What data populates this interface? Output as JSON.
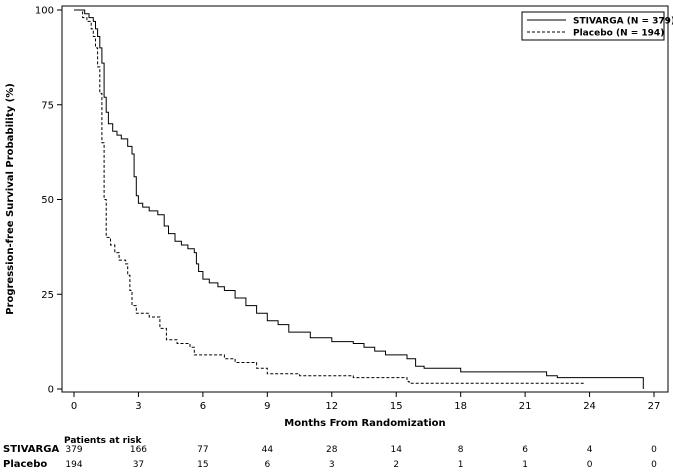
{
  "chart_data": {
    "type": "line",
    "title": "",
    "xlabel": "Months From Randomization",
    "ylabel": "Progression-free Survival Probability (%)",
    "xlim": [
      0,
      27
    ],
    "ylim": [
      0,
      100
    ],
    "x_ticks": [
      0,
      3,
      6,
      9,
      12,
      15,
      18,
      21,
      24,
      27
    ],
    "y_ticks": [
      0,
      25,
      50,
      75,
      100
    ],
    "grid": false,
    "legend_position": "top-right",
    "series": [
      {
        "name": "STIVARGA (N = 379)",
        "line_style": "solid",
        "points": [
          [
            0,
            100
          ],
          [
            0.4,
            100
          ],
          [
            0.5,
            99
          ],
          [
            0.7,
            98
          ],
          [
            0.9,
            97
          ],
          [
            1.0,
            95
          ],
          [
            1.1,
            93
          ],
          [
            1.2,
            90
          ],
          [
            1.3,
            86
          ],
          [
            1.4,
            77
          ],
          [
            1.5,
            73
          ],
          [
            1.6,
            70
          ],
          [
            1.8,
            68
          ],
          [
            2.0,
            67
          ],
          [
            2.2,
            66
          ],
          [
            2.5,
            64
          ],
          [
            2.7,
            62
          ],
          [
            2.8,
            56
          ],
          [
            2.9,
            51
          ],
          [
            3.0,
            49
          ],
          [
            3.2,
            48
          ],
          [
            3.5,
            47
          ],
          [
            3.9,
            46
          ],
          [
            4.2,
            43
          ],
          [
            4.4,
            41
          ],
          [
            4.7,
            39
          ],
          [
            5.0,
            38
          ],
          [
            5.3,
            37
          ],
          [
            5.6,
            36
          ],
          [
            5.7,
            33
          ],
          [
            5.8,
            31
          ],
          [
            6.0,
            29
          ],
          [
            6.3,
            28
          ],
          [
            6.7,
            27
          ],
          [
            7.0,
            26
          ],
          [
            7.5,
            24
          ],
          [
            8.0,
            22
          ],
          [
            8.5,
            20
          ],
          [
            9.0,
            18
          ],
          [
            9.5,
            17
          ],
          [
            10.0,
            15
          ],
          [
            11.0,
            13.5
          ],
          [
            12.0,
            12.5
          ],
          [
            13.0,
            12
          ],
          [
            13.5,
            11
          ],
          [
            14.0,
            10
          ],
          [
            14.5,
            9
          ],
          [
            15.5,
            8
          ],
          [
            15.9,
            6
          ],
          [
            16.3,
            5.5
          ],
          [
            17.5,
            5.5
          ],
          [
            18.0,
            4.5
          ],
          [
            21.0,
            4.5
          ],
          [
            22.0,
            3.5
          ],
          [
            22.5,
            3
          ],
          [
            26.3,
            3
          ],
          [
            26.5,
            1
          ],
          [
            26.5,
            0
          ]
        ]
      },
      {
        "name": "Placebo (N = 194)",
        "line_style": "dashed",
        "points": [
          [
            0,
            100
          ],
          [
            0.3,
            100
          ],
          [
            0.4,
            98
          ],
          [
            0.6,
            97
          ],
          [
            0.8,
            95
          ],
          [
            0.9,
            93
          ],
          [
            1.0,
            90
          ],
          [
            1.1,
            85
          ],
          [
            1.2,
            78
          ],
          [
            1.3,
            65
          ],
          [
            1.4,
            50
          ],
          [
            1.5,
            40
          ],
          [
            1.7,
            38
          ],
          [
            1.9,
            36
          ],
          [
            2.1,
            34
          ],
          [
            2.4,
            33
          ],
          [
            2.5,
            30
          ],
          [
            2.6,
            26
          ],
          [
            2.7,
            22
          ],
          [
            2.9,
            20
          ],
          [
            3.5,
            19
          ],
          [
            4.0,
            16
          ],
          [
            4.3,
            13
          ],
          [
            4.8,
            12
          ],
          [
            5.4,
            11
          ],
          [
            5.6,
            9
          ],
          [
            7.0,
            8
          ],
          [
            7.5,
            7
          ],
          [
            8.5,
            5.5
          ],
          [
            9.0,
            4
          ],
          [
            10.5,
            3.5
          ],
          [
            13.0,
            3
          ],
          [
            15.5,
            2
          ],
          [
            15.6,
            1.5
          ],
          [
            23.8,
            1.5
          ]
        ]
      }
    ]
  },
  "risk_table": {
    "title": "Patients at risk",
    "rows": [
      {
        "group": "STIVARGA",
        "counts": [
          379,
          166,
          77,
          44,
          28,
          14,
          8,
          6,
          4,
          0
        ]
      },
      {
        "group": "Placebo",
        "counts": [
          194,
          37,
          15,
          6,
          3,
          2,
          1,
          1,
          0,
          0
        ]
      }
    ]
  }
}
